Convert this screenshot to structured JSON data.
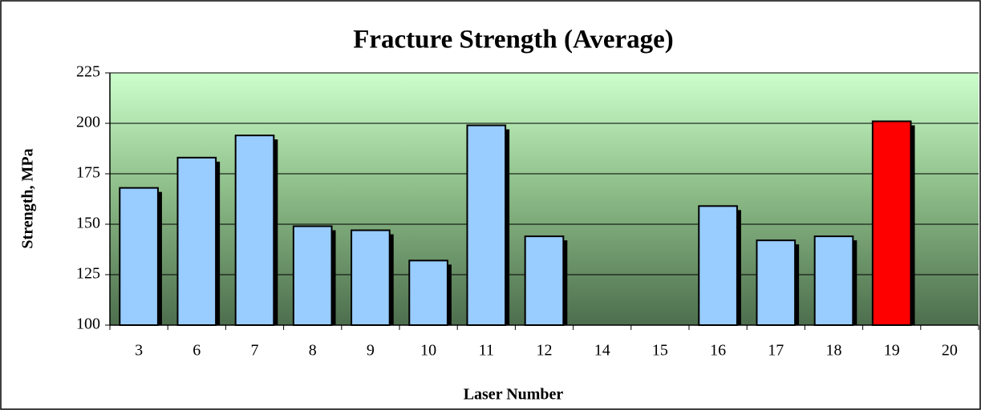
{
  "chart_data": {
    "type": "bar",
    "title": "Fracture Strength (Average)",
    "x_label": "Laser Number",
    "y_label": "Strength, MPa",
    "categories": [
      "3",
      "6",
      "7",
      "8",
      "9",
      "10",
      "11",
      "12",
      "14",
      "15",
      "16",
      "17",
      "18",
      "19",
      "20"
    ],
    "values": [
      168,
      183,
      194,
      149,
      147,
      132,
      199,
      144,
      null,
      null,
      159,
      142,
      144,
      201,
      null
    ],
    "colors": [
      "#99ccff",
      "#99ccff",
      "#99ccff",
      "#99ccff",
      "#99ccff",
      "#99ccff",
      "#99ccff",
      "#99ccff",
      "#99ccff",
      "#99ccff",
      "#99ccff",
      "#99ccff",
      "#99ccff",
      "#ff0000",
      "#99ccff"
    ],
    "ylim": [
      100,
      225
    ],
    "yticks": [
      100,
      125,
      150,
      175,
      200,
      225
    ],
    "grid": true
  }
}
